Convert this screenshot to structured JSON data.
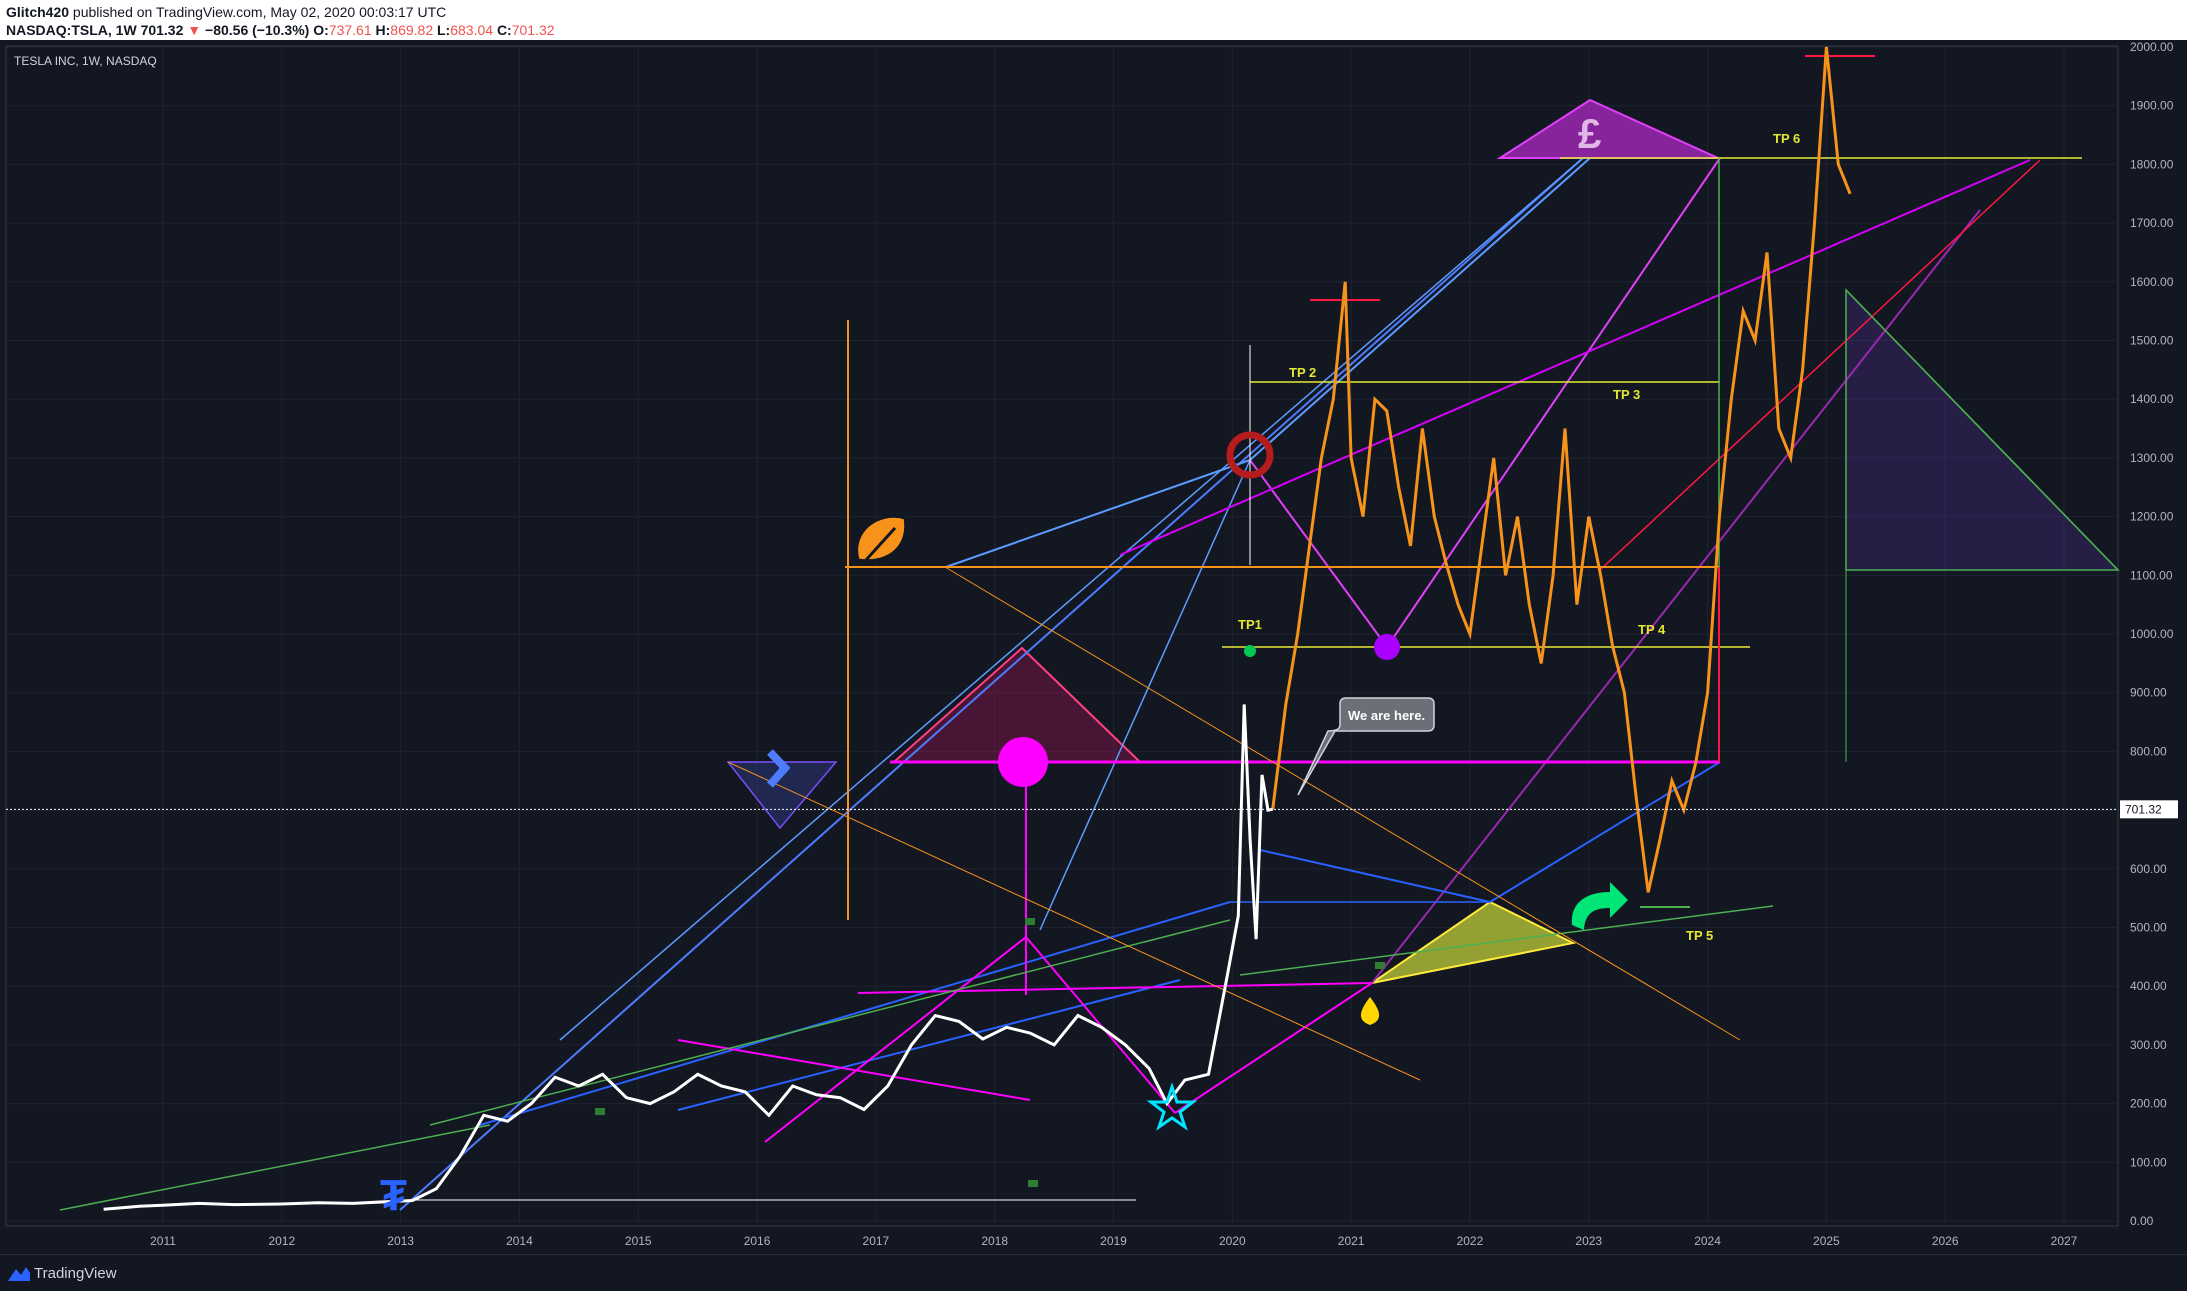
{
  "header": {
    "publisher": "Glitch420",
    "published_text": " published on TradingView.com, May 02, 2020 00:03:17 UTC",
    "symbol_line": "NASDAQ:TSLA, 1W",
    "last": "701.32",
    "arrow": "▼",
    "change": "−80.56 (−10.3%)",
    "open_label": "O:",
    "open": "737.61",
    "high_label": "H:",
    "high": "869.82",
    "low_label": "L:",
    "low": "683.04",
    "close_label": "C:",
    "close": "701.32"
  },
  "legend_title": "TESLA INC, 1W, NASDAQ",
  "footer": {
    "brand": "TradingView"
  },
  "colors": {
    "background": "#131722",
    "history": "#ffffff",
    "projection": "#f7931a",
    "tp_line": "#e5e833",
    "magenta": "#ff00ff",
    "blue": "#2962ff",
    "purple": "#9c27b0"
  },
  "chart_data": {
    "type": "line",
    "title": "TESLA INC, 1W, NASDAQ",
    "ylim": [
      0,
      2000
    ],
    "xlim": [
      2010.4,
      2027.4
    ],
    "grid": true,
    "y_ticks": [
      "0.00",
      "100.00",
      "200.00",
      "300.00",
      "400.00",
      "500.00",
      "600.00",
      "700.00",
      "800.00",
      "900.00",
      "1000.00",
      "1100.00",
      "1200.00",
      "1300.00",
      "1400.00",
      "1500.00",
      "1600.00",
      "1700.00",
      "1800.00",
      "1900.00",
      "2000.00"
    ],
    "x_ticks": [
      "2011",
      "2012",
      "2013",
      "2014",
      "2015",
      "2016",
      "2017",
      "2018",
      "2019",
      "2020",
      "2021",
      "2022",
      "2023",
      "2024",
      "2025",
      "2026",
      "2027"
    ],
    "last_price": "701.32",
    "series": [
      {
        "x": [
          2010.5,
          2010.8,
          2011.0,
          2011.3,
          2011.6,
          2012.0,
          2012.3,
          2012.6,
          2012.9,
          2013.1,
          2013.3,
          2013.5,
          2013.7,
          2013.9,
          2014.1,
          2014.3,
          2014.5,
          2014.7,
          2014.9,
          2015.1,
          2015.3,
          2015.5,
          2015.7,
          2015.9,
          2016.1,
          2016.3,
          2016.5,
          2016.7,
          2016.9,
          2017.1,
          2017.3,
          2017.5,
          2017.7,
          2017.9,
          2018.1,
          2018.3,
          2018.5,
          2018.7,
          2018.9,
          2019.1,
          2019.3,
          2019.45,
          2019.6,
          2019.8,
          2019.95,
          2020.05,
          2020.1,
          2020.15,
          2020.2,
          2020.25,
          2020.3,
          2020.34
        ],
        "values": [
          20,
          25,
          27,
          30,
          28,
          29,
          31,
          30,
          33,
          35,
          55,
          110,
          180,
          170,
          200,
          245,
          230,
          250,
          210,
          200,
          220,
          250,
          230,
          220,
          180,
          230,
          215,
          210,
          190,
          230,
          300,
          350,
          340,
          310,
          330,
          320,
          300,
          350,
          330,
          300,
          260,
          200,
          240,
          250,
          410,
          520,
          880,
          650,
          480,
          760,
          700,
          701.32
        ]
      },
      {
        "x": [
          2020.34,
          2020.45,
          2020.55,
          2020.65,
          2020.75,
          2020.85,
          2020.95,
          2021.0,
          2021.1,
          2021.2,
          2021.3,
          2021.4,
          2021.5,
          2021.6,
          2021.7,
          2021.8,
          2021.9,
          2022.0,
          2022.1,
          2022.2,
          2022.3,
          2022.4,
          2022.5,
          2022.6,
          2022.7,
          2022.8,
          2022.9,
          2023.0,
          2023.1,
          2023.2,
          2023.3,
          2023.4,
          2023.5,
          2023.6,
          2023.7,
          2023.8,
          2023.9,
          2024.0,
          2024.1,
          2024.2,
          2024.3,
          2024.4,
          2024.5,
          2024.6,
          2024.7,
          2024.8,
          2024.9,
          2025.0,
          2025.1,
          2025.2
        ],
        "values": [
          701.32,
          880,
          1000,
          1150,
          1300,
          1400,
          1600,
          1300,
          1200,
          1400,
          1380,
          1250,
          1150,
          1350,
          1200,
          1120,
          1050,
          1000,
          1150,
          1300,
          1100,
          1200,
          1050,
          950,
          1100,
          1350,
          1050,
          1200,
          1100,
          980,
          900,
          720,
          560,
          650,
          750,
          700,
          780,
          900,
          1200,
          1400,
          1550,
          1500,
          1650,
          1350,
          1300,
          1450,
          1700,
          2000,
          1800,
          1750
        ]
      }
    ]
  },
  "annotations": {
    "tp_labels": [
      "TP1",
      "TP 2",
      "TP 3",
      "TP 4",
      "TP 5",
      "TP 6"
    ],
    "callout": "We are here."
  }
}
